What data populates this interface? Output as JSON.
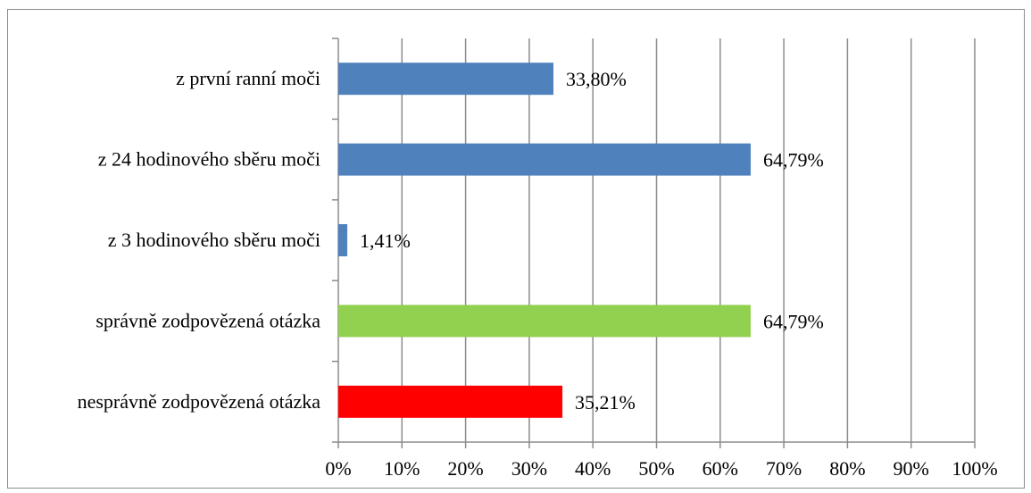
{
  "chart_data": {
    "type": "bar",
    "orientation": "horizontal",
    "categories": [
      "z první ranní moči",
      "z 24 hodinového sběru moči",
      "z 3 hodinového sběru moči",
      "správně zodpovězená otázka",
      "nesprávně zodpovězená otázka"
    ],
    "values": [
      33.8,
      64.79,
      1.41,
      64.79,
      35.21
    ],
    "value_labels": [
      "33,80%",
      "64,79%",
      "1,41%",
      "64,79%",
      "35,21%"
    ],
    "bar_colors": [
      "#4f81bd",
      "#4f81bd",
      "#4f81bd",
      "#92d050",
      "#ff0000"
    ],
    "xlim": [
      0,
      100
    ],
    "x_ticks": [
      0,
      10,
      20,
      30,
      40,
      50,
      60,
      70,
      80,
      90,
      100
    ],
    "x_tick_labels": [
      "0%",
      "10%",
      "20%",
      "30%",
      "40%",
      "50%",
      "60%",
      "70%",
      "80%",
      "90%",
      "100%"
    ],
    "grid": "vertical",
    "legend": "none",
    "title": "",
    "xlabel": "",
    "ylabel": ""
  }
}
